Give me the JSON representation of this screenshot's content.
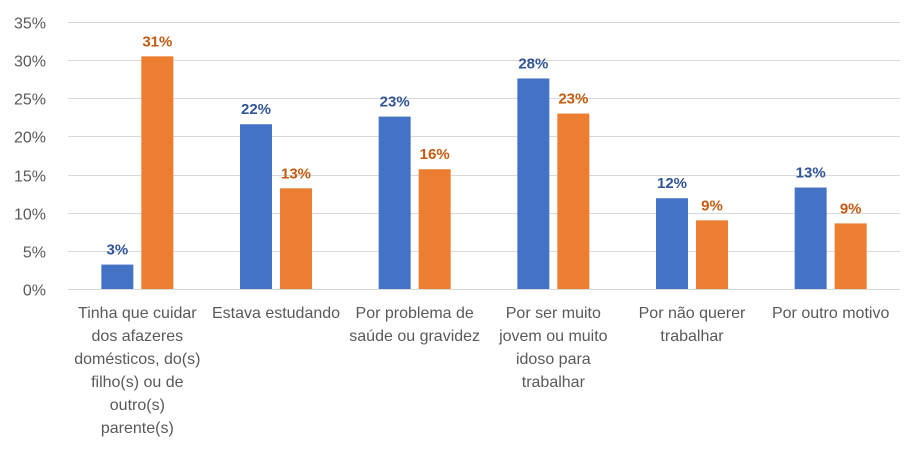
{
  "chart_data": {
    "type": "bar",
    "categories": [
      "Tinha que cuidar dos afazeres domésticos, do(s) filho(s) ou de outro(s) parente(s)",
      "Estava estudando",
      "Por problema de saúde ou gravidez",
      "Por ser muito jovem ou muito idoso para trabalhar",
      "Por não querer trabalhar",
      "Por outro motivo"
    ],
    "category_lines": [
      [
        "Tinha que cuidar",
        "dos afazeres",
        "domésticos, do(s)",
        "filho(s) ou de",
        "outro(s)",
        "parente(s)"
      ],
      [
        "Estava estudando"
      ],
      [
        "Por problema de",
        "saúde ou gravidez"
      ],
      [
        "Por ser muito",
        "jovem ou muito",
        "idoso para",
        "trabalhar"
      ],
      [
        "Por não querer",
        "trabalhar"
      ],
      [
        "Por outro motivo"
      ]
    ],
    "series": [
      {
        "color": "#4472c4",
        "values": [
          3.2,
          21.6,
          22.6,
          27.6,
          11.9,
          13.3
        ],
        "labels": [
          "3%",
          "22%",
          "23%",
          "28%",
          "12%",
          "13%"
        ]
      },
      {
        "color": "#ed7d31",
        "values": [
          30.5,
          13.2,
          15.7,
          23.0,
          9.0,
          8.6
        ],
        "labels": [
          "31%",
          "13%",
          "16%",
          "23%",
          "9%",
          "9%"
        ]
      }
    ],
    "ylim": [
      0,
      35
    ],
    "yticks": [
      0,
      5,
      10,
      15,
      20,
      25,
      30,
      35
    ],
    "ytick_labels": [
      "0%",
      "5%",
      "10%",
      "15%",
      "20%",
      "25%",
      "30%",
      "35%"
    ],
    "grid": true,
    "legend": "none"
  }
}
